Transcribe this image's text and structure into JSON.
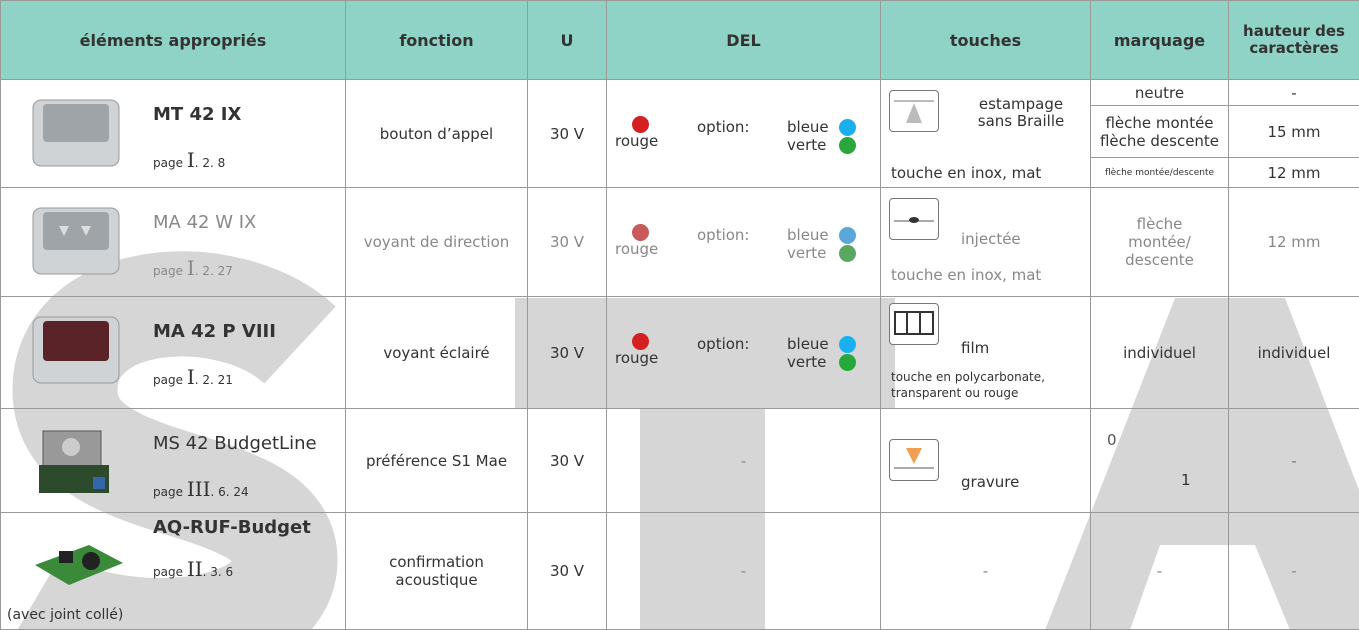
{
  "header": {
    "columns": [
      "éléments appropriés",
      "fonction",
      "U",
      "DEL",
      "touches",
      "marquage",
      "hauteur des caractères"
    ]
  },
  "rows": [
    {
      "product": {
        "name": "MT 42 IX",
        "page_label": "page",
        "page_volume": "I",
        "page_ref": ". 2. 8"
      },
      "function": "bouton d’appel",
      "voltage": "30 V",
      "led": {
        "color": "rouge",
        "option": "option:",
        "options": [
          "bleue",
          "verte"
        ]
      },
      "key": {
        "finish": "estampage sans Braille",
        "material": "touche en inox, mat"
      },
      "marking": [
        {
          "label": "neutre",
          "height": "-"
        },
        {
          "label": "flèche montée flèche descente",
          "height": "15 mm"
        },
        {
          "label": "flèche montée/descente",
          "height": "12 mm"
        }
      ]
    },
    {
      "product": {
        "name": "MA 42 W IX",
        "page_label": "page",
        "page_volume": "I",
        "page_ref": ". 2. 27"
      },
      "function": "voyant de direction",
      "voltage": "30 V",
      "led": {
        "color": "rouge",
        "option": "option:",
        "options": [
          "bleue",
          "verte"
        ]
      },
      "key": {
        "finish": "injectée",
        "material": "touche en inox, mat"
      },
      "marking": "flèche montée/ descente",
      "height": "12 mm"
    },
    {
      "product": {
        "name": "MA 42 P VIII",
        "page_label": "page",
        "page_volume": "I",
        "page_ref": ". 2. 21"
      },
      "function": "voyant éclairé",
      "voltage": "30 V",
      "led": {
        "color": "rouge",
        "option": "option:",
        "options": [
          "bleue",
          "verte"
        ]
      },
      "key": {
        "finish": "film",
        "material": "touche en polycarbonate, transparent ou rouge"
      },
      "marking": "individuel",
      "height": "individuel"
    },
    {
      "product": {
        "name": "MS 42 BudgetLine",
        "page_label": "page",
        "page_volume": "III",
        "page_ref": ". 6. 24"
      },
      "function": "préférence S1 Mae",
      "voltage": "30 V",
      "led": "-",
      "key": {
        "finish": "gravure"
      },
      "marking": [
        "0",
        "1"
      ],
      "height": "-"
    },
    {
      "product": {
        "name": "AQ-RUF-Budget",
        "page_label": "page",
        "page_volume": "II",
        "page_ref": ". 3. 6",
        "note": "(avec joint collé)"
      },
      "function": "confirmation acoustique",
      "voltage": "30 V",
      "led": "-",
      "key": "-",
      "marking": "-",
      "height": "-"
    }
  ]
}
